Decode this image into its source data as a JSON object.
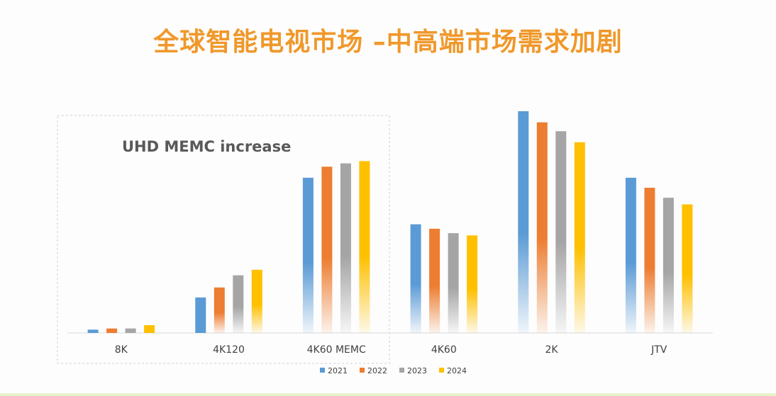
{
  "slide": {
    "title": "全球智能电视市场 –中高端市场需求加剧"
  },
  "annotation": {
    "text": "UHD MEMC increase"
  },
  "colors": {
    "title": "#f0982a",
    "axis": "#d9d9d9",
    "tick_text": "#404040",
    "annotation_text": "#595959",
    "highlight_border": "#d0d0d0"
  },
  "chart_data": {
    "type": "bar",
    "title": "",
    "xlabel": "",
    "ylabel": "",
    "ylim": [
      0,
      100
    ],
    "grid": false,
    "legend_position": "bottom",
    "categories": [
      "8K",
      "4K120",
      "4K60 MEMC",
      "4K60",
      "2K",
      "JTV"
    ],
    "series": [
      {
        "name": "2021",
        "color": "#5b9bd5",
        "values": [
          1.5,
          16,
          70,
          49,
          100,
          70
        ]
      },
      {
        "name": "2022",
        "color": "#ed7d31",
        "values": [
          2,
          20.5,
          75,
          47,
          95,
          65.5
        ]
      },
      {
        "name": "2023",
        "color": "#a5a5a5",
        "values": [
          2,
          26,
          76.5,
          45,
          91,
          61
        ]
      },
      {
        "name": "2024",
        "color": "#ffc000",
        "values": [
          3.5,
          28.5,
          77.5,
          44,
          86,
          58
        ]
      }
    ]
  }
}
